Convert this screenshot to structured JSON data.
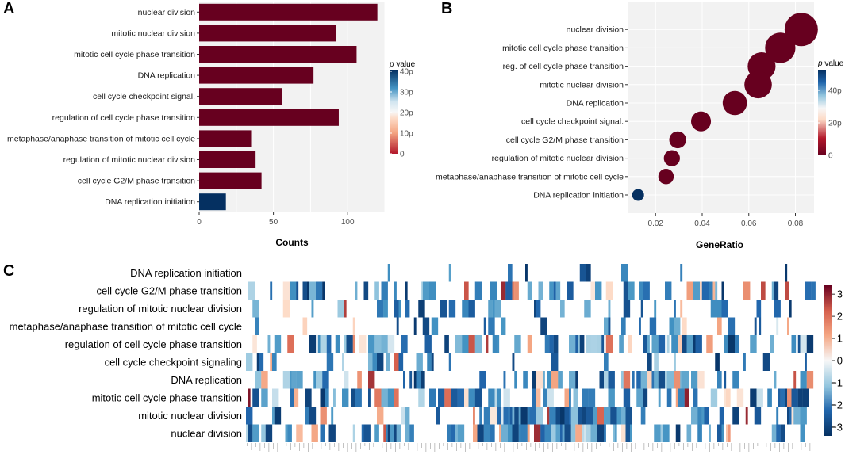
{
  "chart_data": [
    {
      "panel": "A",
      "type": "bar",
      "orientation": "horizontal",
      "categories": [
        "nuclear division",
        "mitotic nuclear division",
        "mitotic cell cycle phase transition",
        "DNA replication",
        "cell cycle checkpoint signal.",
        "regulation of cell cycle phase transition",
        "metaphase/anaphase transition of mitotic cell cycle",
        "regulation of mitotic nuclear division",
        "cell cycle G2/M phase transition",
        "DNA replication initiation"
      ],
      "values": [
        120,
        92,
        106,
        77,
        56,
        94,
        35,
        38,
        42,
        18
      ],
      "bar_colors": [
        "#67001f",
        "#67001f",
        "#67001f",
        "#67001f",
        "#67001f",
        "#67001f",
        "#67001f",
        "#67001f",
        "#67001f",
        "#053061"
      ],
      "xlabel": "Counts",
      "xlim": [
        0,
        125
      ],
      "xticks": [
        0,
        50,
        100
      ],
      "xtick_labels": [
        "0",
        "50",
        "100"
      ],
      "legend": {
        "title_italic": "p",
        "title_rest": " value",
        "tick_labels": [
          "0",
          "10p",
          "20p",
          "30p",
          "40p"
        ]
      }
    },
    {
      "panel": "B",
      "type": "scatter",
      "categories": [
        "nuclear division",
        "mitotic cell cycle phase transition",
        "reg. of cell cycle phase transition",
        "mitotic nuclear division",
        "DNA replication",
        "cell cycle checkpoint signal.",
        "cell cycle G2/M phase transition",
        "regulation of mitotic nuclear division",
        "metaphase/anaphase transition of mitotic cell cycle",
        "DNA replication initiation"
      ],
      "x": [
        0.0825,
        0.0735,
        0.0655,
        0.064,
        0.054,
        0.0395,
        0.0295,
        0.027,
        0.0245,
        0.0125
      ],
      "sizes": [
        120,
        106,
        94,
        92,
        77,
        56,
        42,
        38,
        35,
        18
      ],
      "point_colors": [
        "#67001f",
        "#67001f",
        "#67001f",
        "#67001f",
        "#67001f",
        "#67001f",
        "#67001f",
        "#67001f",
        "#67001f",
        "#053061"
      ],
      "xlabel": "GeneRatio",
      "xlim": [
        0.008,
        0.088
      ],
      "xticks": [
        0.02,
        0.04,
        0.06,
        0.08
      ],
      "xtick_labels": [
        "0.02",
        "0.04",
        "0.06",
        "0.08"
      ],
      "legend": {
        "title_italic": "p",
        "title_rest": " value",
        "tick_labels": [
          "0",
          "20p",
          "40p"
        ]
      }
    },
    {
      "panel": "C",
      "type": "heatmap",
      "rows": [
        "DNA replication initiation",
        "cell cycle G2/M phase transition",
        "regulation of mitotic nuclear division",
        "metaphase/anaphase transition of mitotic cell cycle",
        "regulation of cell cycle phase transition",
        "cell cycle checkpoint signaling",
        "DNA replication",
        "mitotic cell cycle phase transition",
        "mitotic nuclear division",
        "nuclear division"
      ],
      "column_count": 260,
      "value_range": [
        -3.4,
        3.4
      ],
      "colorbar_ticks": [
        3,
        2,
        1,
        0,
        -1,
        -2,
        -3
      ],
      "colorbar_labels": [
        "3",
        "2",
        "1",
        "0",
        "−1",
        "−2",
        "−3"
      ]
    }
  ],
  "labels": {
    "panel_a": "A",
    "panel_b": "B",
    "panel_c": "C"
  }
}
